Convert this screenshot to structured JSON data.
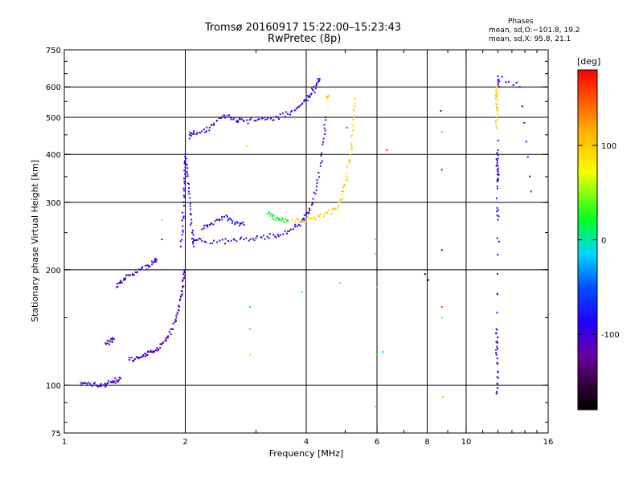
{
  "chart_data": {
    "type": "scatter",
    "title": "Tromsø 20160917 15:22:00–15:23:43",
    "subtitle": "RwPretec (8p)",
    "xlabel": "Frequency [MHz]",
    "ylabel": "Stationary phase Virtual Height [km]",
    "x_scale": "log",
    "y_scale": "log",
    "xlim": [
      1,
      16
    ],
    "ylim": [
      75,
      750
    ],
    "x_ticks": [
      1,
      2,
      4,
      6,
      8,
      10,
      16
    ],
    "y_ticks": [
      75,
      100,
      200,
      300,
      400,
      500,
      600,
      750
    ],
    "x_grid": [
      2,
      4,
      6,
      8,
      10
    ],
    "y_grid": [
      100,
      200,
      300,
      400,
      500,
      600
    ],
    "phase_stats": {
      "heading": "Phases",
      "o_line": "mean, sd,O:−101.8, 19.2",
      "x_line": "mean, sd,X:  95.8, 21.1"
    },
    "colorbar": {
      "label": "[deg]",
      "range": [
        -180,
        180
      ],
      "ticks": [
        100,
        0,
        -100
      ],
      "scale": "rainbow (black → purple → blue → cyan → green → yellow → orange → red)"
    },
    "segments": [
      {
        "phase": -105,
        "points": [
          [
            1.1,
            100
          ],
          [
            1.14,
            101
          ],
          [
            1.2,
            100
          ],
          [
            1.25,
            100
          ],
          [
            1.28,
            101
          ],
          [
            1.32,
            102
          ],
          [
            1.35,
            103
          ],
          [
            1.38,
            104
          ]
        ]
      },
      {
        "phase": -110,
        "points": [
          [
            1.27,
            128
          ],
          [
            1.3,
            130
          ],
          [
            1.33,
            132
          ]
        ]
      },
      {
        "phase": -105,
        "points": [
          [
            1.35,
            180
          ],
          [
            1.38,
            185
          ],
          [
            1.42,
            190
          ],
          [
            1.48,
            195
          ],
          [
            1.55,
            200
          ],
          [
            1.62,
            205
          ],
          [
            1.68,
            210
          ],
          [
            1.7,
            212
          ]
        ]
      },
      {
        "phase": -108,
        "points": [
          [
            1.45,
            118
          ],
          [
            1.5,
            117
          ],
          [
            1.55,
            118
          ],
          [
            1.6,
            120
          ],
          [
            1.65,
            122
          ],
          [
            1.7,
            125
          ],
          [
            1.75,
            128
          ],
          [
            1.8,
            133
          ],
          [
            1.85,
            140
          ],
          [
            1.9,
            150
          ],
          [
            1.93,
            160
          ],
          [
            1.95,
            170
          ],
          [
            1.97,
            180
          ],
          [
            1.99,
            190
          ],
          [
            2.0,
            200
          ]
        ]
      },
      {
        "phase": -90,
        "points": [
          [
            1.95,
            230
          ],
          [
            1.97,
            260
          ],
          [
            1.98,
            300
          ],
          [
            1.99,
            340
          ],
          [
            2.0,
            370
          ],
          [
            2.0,
            400
          ],
          [
            2.02,
            360
          ],
          [
            2.04,
            320
          ],
          [
            2.06,
            280
          ],
          [
            2.08,
            250
          ],
          [
            2.1,
            230
          ]
        ]
      },
      {
        "phase": -100,
        "points": [
          [
            2.1,
            240
          ],
          [
            2.2,
            238
          ],
          [
            2.4,
            236
          ],
          [
            2.6,
            238
          ],
          [
            2.8,
            240
          ],
          [
            3.0,
            242
          ],
          [
            3.2,
            244
          ],
          [
            3.4,
            247
          ],
          [
            3.6,
            252
          ],
          [
            3.8,
            260
          ],
          [
            3.95,
            270
          ],
          [
            4.05,
            282
          ],
          [
            4.15,
            298
          ],
          [
            4.25,
            330
          ],
          [
            4.35,
            380
          ],
          [
            4.42,
            440
          ],
          [
            4.47,
            500
          ]
        ]
      },
      {
        "phase": -80,
        "points": [
          [
            2.2,
            255
          ],
          [
            2.3,
            262
          ],
          [
            2.4,
            270
          ],
          [
            2.5,
            275
          ],
          [
            2.6,
            270
          ],
          [
            2.7,
            265
          ],
          [
            2.8,
            262
          ]
        ]
      },
      {
        "phase": -95,
        "points": [
          [
            2.05,
            450
          ],
          [
            2.1,
            455
          ],
          [
            2.2,
            460
          ],
          [
            2.3,
            470
          ],
          [
            2.4,
            490
          ],
          [
            2.5,
            505
          ],
          [
            2.6,
            500
          ],
          [
            2.7,
            490
          ],
          [
            2.8,
            488
          ],
          [
            3.0,
            490
          ],
          [
            3.2,
            495
          ],
          [
            3.4,
            500
          ],
          [
            3.6,
            510
          ],
          [
            3.8,
            530
          ],
          [
            3.95,
            550
          ],
          [
            4.05,
            565
          ],
          [
            4.15,
            590
          ],
          [
            4.25,
            610
          ],
          [
            4.32,
            630
          ]
        ]
      },
      {
        "phase": 20,
        "points": [
          [
            3.2,
            280
          ],
          [
            3.3,
            275
          ],
          [
            3.4,
            272
          ],
          [
            3.5,
            270
          ],
          [
            3.6,
            268
          ]
        ]
      },
      {
        "phase": 95,
        "points": [
          [
            3.7,
            270
          ],
          [
            3.9,
            268
          ],
          [
            4.1,
            272
          ],
          [
            4.3,
            276
          ],
          [
            4.5,
            280
          ],
          [
            4.7,
            288
          ],
          [
            4.85,
            300
          ],
          [
            4.95,
            320
          ],
          [
            5.05,
            350
          ],
          [
            5.15,
            400
          ],
          [
            5.2,
            450
          ],
          [
            5.25,
            500
          ],
          [
            5.3,
            560
          ]
        ]
      },
      {
        "phase": 95,
        "points": [
          [
            4.5,
            560
          ],
          [
            4.55,
            570
          ]
        ]
      },
      {
        "phase": 95,
        "points": [
          [
            11.9,
            470
          ],
          [
            11.9,
            500
          ],
          [
            11.9,
            540
          ],
          [
            11.9,
            570
          ],
          [
            11.9,
            600
          ],
          [
            11.95,
            520
          ]
        ]
      },
      {
        "phase": -100,
        "points": [
          [
            11.95,
            340
          ],
          [
            12.0,
            360
          ],
          [
            11.95,
            380
          ],
          [
            12.0,
            410
          ],
          [
            11.95,
            290
          ],
          [
            12.0,
            270
          ],
          [
            11.9,
            140
          ],
          [
            11.95,
            130
          ],
          [
            11.9,
            120
          ],
          [
            11.95,
            105
          ],
          [
            11.9,
            95
          ],
          [
            12.1,
            600
          ],
          [
            12.0,
            640
          ],
          [
            13.6,
            600
          ],
          [
            14.5,
            320
          ]
        ]
      },
      {
        "phase": 60,
        "points": [
          [
            13.5,
            620
          ]
        ]
      }
    ],
    "scatter_points": [
      {
        "x": 2.85,
        "y": 420,
        "phase": 100
      },
      {
        "x": 2.9,
        "y": 160,
        "phase": 10
      },
      {
        "x": 2.9,
        "y": 140,
        "phase": 10
      },
      {
        "x": 2.9,
        "y": 120,
        "phase": 100
      },
      {
        "x": 3.9,
        "y": 175,
        "phase": 10
      },
      {
        "x": 4.85,
        "y": 185,
        "phase": 120
      },
      {
        "x": 5.95,
        "y": 240,
        "phase": 120
      },
      {
        "x": 5.95,
        "y": 220,
        "phase": 100
      },
      {
        "x": 6.0,
        "y": 180,
        "phase": 120
      },
      {
        "x": 6.0,
        "y": 120,
        "phase": 20
      },
      {
        "x": 6.2,
        "y": 122,
        "phase": -20
      },
      {
        "x": 5.95,
        "y": 88,
        "phase": 100
      },
      {
        "x": 6.35,
        "y": 410,
        "phase": 170
      },
      {
        "x": 7.9,
        "y": 195,
        "phase": -170
      },
      {
        "x": 8.05,
        "y": 188,
        "phase": -170
      },
      {
        "x": 8.65,
        "y": 520,
        "phase": -140
      },
      {
        "x": 8.7,
        "y": 458,
        "phase": 120
      },
      {
        "x": 8.7,
        "y": 365,
        "phase": -60
      },
      {
        "x": 8.7,
        "y": 225,
        "phase": -140
      },
      {
        "x": 8.7,
        "y": 160,
        "phase": 160
      },
      {
        "x": 8.7,
        "y": 150,
        "phase": 40
      },
      {
        "x": 8.75,
        "y": 93,
        "phase": 100
      },
      {
        "x": 2.05,
        "y": 440,
        "phase": -110
      },
      {
        "x": 4.2,
        "y": 580,
        "phase": -140
      },
      {
        "x": 1.75,
        "y": 270,
        "phase": 100
      },
      {
        "x": 1.75,
        "y": 240,
        "phase": -130
      },
      {
        "x": 5.05,
        "y": 470,
        "phase": 170
      }
    ]
  }
}
